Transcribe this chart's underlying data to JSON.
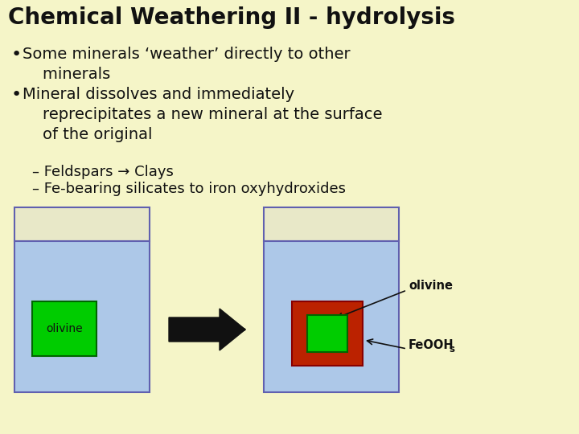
{
  "bg_color": "#f5f5c8",
  "title": "Chemical Weathering II - hydrolysis",
  "title_fontsize": 20,
  "bullets": [
    "Some minerals ‘weather’ directly to other\n    minerals",
    "Mineral dissolves and immediately\n    reprecipitates a new mineral at the surface\n    of the original"
  ],
  "sub_bullets": [
    "– Feldspars → Clays",
    "– Fe-bearing silicates to iron oxyhydroxides"
  ],
  "bullet_fontsize": 14,
  "sub_bullet_fontsize": 13,
  "water_color": "#adc8e8",
  "beaker_edge_color": "#6060b0",
  "beaker_rim_color": "#e8e8c8",
  "green_color": "#00cc00",
  "red_color": "#bb2200",
  "arrow_color": "#111111"
}
